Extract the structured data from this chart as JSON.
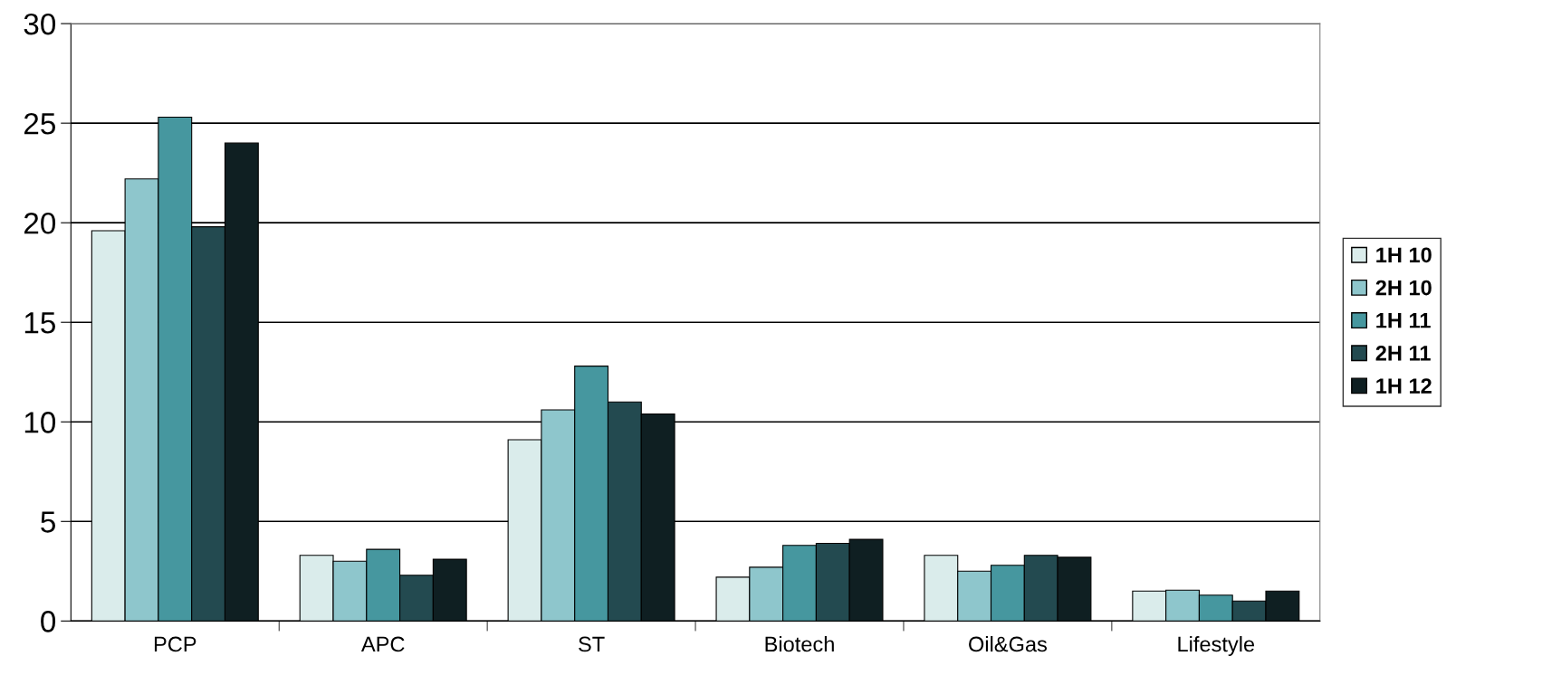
{
  "chart_data": {
    "type": "bar",
    "categories": [
      "PCP",
      "APC",
      "ST",
      "Biotech",
      "Oil&Gas",
      "Lifestyle"
    ],
    "series": [
      {
        "name": "1H 10",
        "color": "#daeceb",
        "values": [
          19.6,
          3.3,
          9.1,
          2.2,
          3.3,
          1.5
        ]
      },
      {
        "name": "2H 10",
        "color": "#8ec6cc",
        "values": [
          22.2,
          3.0,
          10.6,
          2.7,
          2.5,
          1.55
        ]
      },
      {
        "name": "1H 11",
        "color": "#46979f",
        "values": [
          25.3,
          3.6,
          12.8,
          3.8,
          2.8,
          1.3
        ]
      },
      {
        "name": "2H 11",
        "color": "#234a50",
        "values": [
          19.8,
          2.3,
          11.0,
          3.9,
          3.3,
          1.0
        ]
      },
      {
        "name": "1H 12",
        "color": "#0f1f22",
        "values": [
          24.0,
          3.1,
          10.4,
          4.1,
          3.2,
          1.5
        ]
      }
    ],
    "ylim": [
      0,
      30
    ],
    "yticks": [
      0,
      5,
      10,
      15,
      20,
      25,
      30
    ],
    "grid": "y",
    "legend": "right"
  }
}
